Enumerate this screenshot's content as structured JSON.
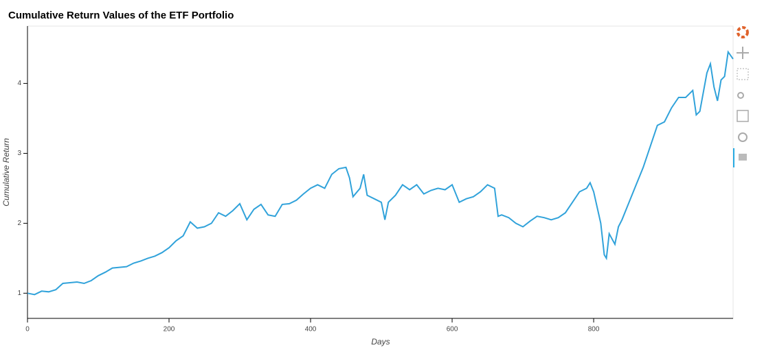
{
  "chart_data": {
    "type": "line",
    "title": "Cumulative Return Values of the ETF Portfolio",
    "x_label": "Days",
    "y_label": "Cumulative Return",
    "xlim": [
      0,
      997
    ],
    "ylim": [
      0.64,
      4.82
    ],
    "xticks": [
      0,
      200,
      400,
      600,
      800
    ],
    "yticks": [
      1,
      2,
      3,
      4
    ],
    "series": [
      {
        "name": "Cumulative Return",
        "color": "#30a2da",
        "x": [
          0,
          10,
          20,
          30,
          40,
          50,
          60,
          70,
          80,
          90,
          100,
          110,
          120,
          130,
          140,
          150,
          160,
          170,
          180,
          190,
          200,
          210,
          220,
          230,
          240,
          250,
          260,
          270,
          280,
          290,
          300,
          310,
          320,
          330,
          340,
          350,
          360,
          370,
          380,
          390,
          400,
          410,
          420,
          430,
          440,
          450,
          455,
          460,
          470,
          475,
          480,
          490,
          500,
          505,
          510,
          520,
          530,
          540,
          550,
          560,
          570,
          580,
          590,
          600,
          610,
          620,
          630,
          640,
          650,
          660,
          665,
          670,
          680,
          690,
          700,
          710,
          720,
          730,
          740,
          750,
          760,
          770,
          780,
          790,
          795,
          800,
          810,
          815,
          818,
          822,
          830,
          835,
          840,
          850,
          860,
          870,
          880,
          890,
          900,
          910,
          920,
          930,
          940,
          945,
          950,
          960,
          965,
          970,
          975,
          980,
          985,
          990,
          997
        ],
        "values": [
          1.0,
          0.98,
          1.03,
          1.02,
          1.05,
          1.14,
          1.15,
          1.16,
          1.14,
          1.18,
          1.25,
          1.3,
          1.36,
          1.37,
          1.38,
          1.43,
          1.46,
          1.5,
          1.53,
          1.58,
          1.65,
          1.75,
          1.82,
          2.02,
          1.93,
          1.95,
          2.0,
          2.15,
          2.1,
          2.18,
          2.28,
          2.05,
          2.2,
          2.27,
          2.12,
          2.1,
          2.27,
          2.28,
          2.33,
          2.42,
          2.5,
          2.55,
          2.5,
          2.7,
          2.78,
          2.8,
          2.65,
          2.38,
          2.5,
          2.7,
          2.4,
          2.35,
          2.3,
          2.05,
          2.3,
          2.4,
          2.55,
          2.48,
          2.55,
          2.42,
          2.47,
          2.5,
          2.48,
          2.55,
          2.3,
          2.35,
          2.38,
          2.45,
          2.55,
          2.5,
          2.1,
          2.12,
          2.08,
          2.0,
          1.95,
          2.03,
          2.1,
          2.08,
          2.05,
          2.08,
          2.15,
          2.3,
          2.45,
          2.5,
          2.58,
          2.45,
          2.0,
          1.55,
          1.5,
          1.85,
          1.7,
          1.95,
          2.05,
          2.3,
          2.55,
          2.8,
          3.1,
          3.4,
          3.45,
          3.65,
          3.8,
          3.8,
          3.9,
          3.55,
          3.6,
          4.15,
          4.28,
          3.95,
          3.75,
          4.05,
          4.1,
          4.45,
          4.35
        ]
      }
    ]
  }
}
